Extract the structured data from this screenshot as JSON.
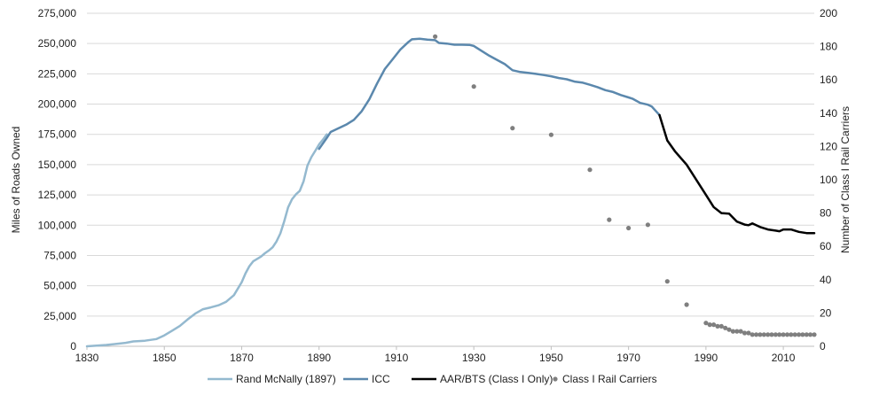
{
  "chart_data": {
    "type": "line",
    "title": "",
    "xlabel": "",
    "ylabel": "Miles of Roads Owned",
    "y2label": "Number of Class I Rail Carriers",
    "xlim": [
      1830,
      2018
    ],
    "ylim": [
      0,
      275000
    ],
    "y2lim": [
      0,
      200
    ],
    "grid": "horizontal",
    "legend_position": "bottom",
    "x_ticks": [
      "1830",
      "1850",
      "1870",
      "1890",
      "1910",
      "1930",
      "1950",
      "1970",
      "1990",
      "2010"
    ],
    "y_ticks": [
      "0",
      "25,000",
      "50,000",
      "75,000",
      "100,000",
      "125,000",
      "150,000",
      "175,000",
      "200,000",
      "225,000",
      "250,000",
      "275,000"
    ],
    "y2_ticks": [
      "0",
      "20",
      "40",
      "60",
      "80",
      "100",
      "120",
      "140",
      "160",
      "180",
      "200"
    ],
    "series": [
      {
        "name": "Rand McNally (1897)",
        "type": "line",
        "axis": "left",
        "color": "#94b9cf",
        "points": [
          [
            1830,
            23
          ],
          [
            1835,
            1098
          ],
          [
            1840,
            2818
          ],
          [
            1842,
            4000
          ],
          [
            1845,
            4633
          ],
          [
            1848,
            5996
          ],
          [
            1850,
            9021
          ],
          [
            1852,
            12908
          ],
          [
            1854,
            16720
          ],
          [
            1856,
            22076
          ],
          [
            1858,
            26968
          ],
          [
            1860,
            30626
          ],
          [
            1862,
            32120
          ],
          [
            1864,
            33860
          ],
          [
            1866,
            36801
          ],
          [
            1868,
            42229
          ],
          [
            1870,
            52922
          ],
          [
            1871,
            60301
          ],
          [
            1872,
            66171
          ],
          [
            1873,
            70268
          ],
          [
            1875,
            74096
          ],
          [
            1876,
            76808
          ],
          [
            1877,
            79082
          ],
          [
            1878,
            81747
          ],
          [
            1879,
            86556
          ],
          [
            1880,
            93262
          ],
          [
            1881,
            103108
          ],
          [
            1882,
            114677
          ],
          [
            1883,
            121422
          ],
          [
            1884,
            125345
          ],
          [
            1885,
            128320
          ],
          [
            1886,
            136338
          ],
          [
            1887,
            149214
          ],
          [
            1888,
            156114
          ],
          [
            1889,
            161276
          ],
          [
            1890,
            166703
          ],
          [
            1891,
            170601
          ],
          [
            1892,
            175000
          ]
        ]
      },
      {
        "name": "ICC",
        "type": "line",
        "axis": "left",
        "color": "#5b88ad",
        "points": [
          [
            1890,
            163000
          ],
          [
            1892,
            172000
          ],
          [
            1893,
            177000
          ],
          [
            1895,
            180000
          ],
          [
            1897,
            183000
          ],
          [
            1899,
            187000
          ],
          [
            1901,
            194000
          ],
          [
            1903,
            204000
          ],
          [
            1905,
            217000
          ],
          [
            1907,
            229000
          ],
          [
            1909,
            237000
          ],
          [
            1911,
            245000
          ],
          [
            1913,
            251000
          ],
          [
            1914,
            253500
          ],
          [
            1916,
            254000
          ],
          [
            1918,
            253300
          ],
          [
            1920,
            252800
          ],
          [
            1921,
            250500
          ],
          [
            1923,
            250000
          ],
          [
            1925,
            249000
          ],
          [
            1927,
            249000
          ],
          [
            1929,
            248800
          ],
          [
            1930,
            248000
          ],
          [
            1932,
            244000
          ],
          [
            1934,
            240000
          ],
          [
            1936,
            236500
          ],
          [
            1938,
            233000
          ],
          [
            1940,
            228000
          ],
          [
            1942,
            226500
          ],
          [
            1944,
            225800
          ],
          [
            1946,
            225000
          ],
          [
            1948,
            224000
          ],
          [
            1950,
            223000
          ],
          [
            1952,
            221500
          ],
          [
            1954,
            220500
          ],
          [
            1956,
            218600
          ],
          [
            1958,
            217800
          ],
          [
            1960,
            216000
          ],
          [
            1962,
            214000
          ],
          [
            1964,
            211500
          ],
          [
            1966,
            210000
          ],
          [
            1968,
            207500
          ],
          [
            1970,
            205500
          ],
          [
            1971,
            204500
          ],
          [
            1973,
            201000
          ],
          [
            1975,
            199500
          ],
          [
            1976,
            198000
          ],
          [
            1978,
            191000
          ]
        ]
      },
      {
        "name": "AAR/BTS (Class I Only)",
        "type": "line",
        "axis": "left",
        "color": "#000000",
        "points": [
          [
            1978,
            191000
          ],
          [
            1980,
            170000
          ],
          [
            1982,
            161000
          ],
          [
            1985,
            150000
          ],
          [
            1987,
            140000
          ],
          [
            1990,
            125000
          ],
          [
            1992,
            115000
          ],
          [
            1994,
            110000
          ],
          [
            1996,
            109500
          ],
          [
            1998,
            103000
          ],
          [
            2000,
            100500
          ],
          [
            2001,
            100000
          ],
          [
            2002,
            101500
          ],
          [
            2004,
            98500
          ],
          [
            2006,
            96500
          ],
          [
            2008,
            95500
          ],
          [
            2009,
            95000
          ],
          [
            2010,
            96500
          ],
          [
            2012,
            96500
          ],
          [
            2014,
            94500
          ],
          [
            2016,
            93500
          ],
          [
            2018,
            93500
          ]
        ]
      },
      {
        "name": "Class I Rail Carriers",
        "type": "scatter",
        "axis": "right",
        "color": "#7f7f7f",
        "points": [
          [
            1920,
            186
          ],
          [
            1930,
            156
          ],
          [
            1940,
            131
          ],
          [
            1950,
            127
          ],
          [
            1960,
            106
          ],
          [
            1965,
            76
          ],
          [
            1970,
            71
          ],
          [
            1975,
            73
          ],
          [
            1980,
            39
          ],
          [
            1985,
            25
          ],
          [
            1990,
            14
          ],
          [
            1991,
            13
          ],
          [
            1992,
            13
          ],
          [
            1993,
            12
          ],
          [
            1994,
            12
          ],
          [
            1995,
            11
          ],
          [
            1996,
            10
          ],
          [
            1997,
            9
          ],
          [
            1998,
            9
          ],
          [
            1999,
            9
          ],
          [
            2000,
            8
          ],
          [
            2001,
            8
          ],
          [
            2002,
            7
          ],
          [
            2003,
            7
          ],
          [
            2004,
            7
          ],
          [
            2005,
            7
          ],
          [
            2006,
            7
          ],
          [
            2007,
            7
          ],
          [
            2008,
            7
          ],
          [
            2009,
            7
          ],
          [
            2010,
            7
          ],
          [
            2011,
            7
          ],
          [
            2012,
            7
          ],
          [
            2013,
            7
          ],
          [
            2014,
            7
          ],
          [
            2015,
            7
          ],
          [
            2016,
            7
          ],
          [
            2017,
            7
          ],
          [
            2018,
            7
          ]
        ]
      }
    ]
  }
}
